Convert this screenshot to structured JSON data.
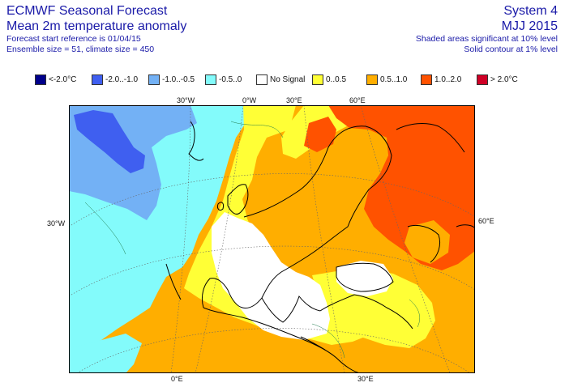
{
  "header": {
    "title": "ECMWF Seasonal Forecast",
    "subtitle": "Mean 2m temperature anomaly",
    "start_reference": "Forecast start reference is 01/04/15",
    "ensemble": "Ensemble size = 51, climate size = 450",
    "system": "System 4",
    "period": "MJJ 2015",
    "shaded_note": "Shaded areas significant at 10% level",
    "contour_note": "Solid contour at 1% level"
  },
  "legend": [
    {
      "label": "<-2.0°C",
      "color": "#00008b"
    },
    {
      "label": "-2.0..-1.0",
      "color": "#3f5ff0"
    },
    {
      "label": "-1.0..-0.5",
      "color": "#73b1f5"
    },
    {
      "label": "-0.5..0",
      "color": "#83fbfb"
    },
    {
      "label": "No Signal",
      "color": "#ffffff"
    },
    {
      "label": "0..0.5",
      "color": "#ffff36"
    },
    {
      "label": "0.5..1.0",
      "color": "#ffae00"
    },
    {
      "label": "1.0..2.0",
      "color": "#ff5200"
    },
    {
      "label": "> 2.0°C",
      "color": "#cf0026"
    }
  ],
  "grid_labels": {
    "top_30w": "30°W",
    "top_0w": "0°W",
    "top_30e": "30°E",
    "top_60e": "60°E",
    "left_30w": "30°W",
    "right_60e": "60°E",
    "bottom_0e": "0°E",
    "bottom_30e": "30°E"
  },
  "colors": {
    "text_blue": "#1a1aa8",
    "coast": "#000000",
    "grid": "#555555"
  }
}
